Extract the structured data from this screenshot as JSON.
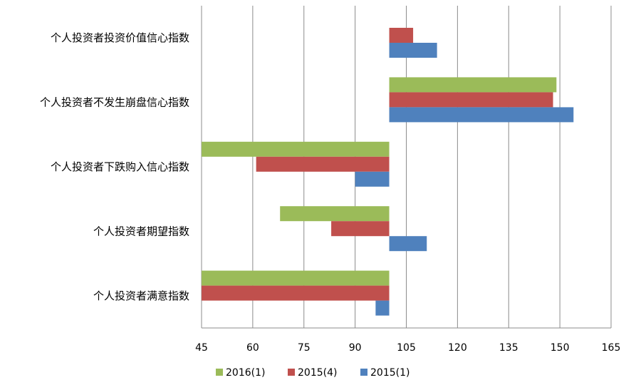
{
  "chart_data": {
    "type": "bar",
    "orientation": "horizontal",
    "title": "",
    "xlabel": "",
    "ylabel": "",
    "baseline": 100,
    "xlim": [
      45,
      165
    ],
    "xticks": [
      45,
      60,
      75,
      90,
      105,
      120,
      135,
      150,
      165
    ],
    "grid": "vertical",
    "legend_position": "bottom",
    "categories": [
      "个人投资者投资价值信心指数",
      "个人投资者不发生崩盘信心指数",
      "个人投资者下跌购入信心指数",
      "个人投资者期望指数",
      "个人投资者满意指数"
    ],
    "series": [
      {
        "name": "2016(1)",
        "color": "#9BBB59",
        "values": [
          100.0,
          149.0,
          45.0,
          68.0,
          45.0
        ]
      },
      {
        "name": "2015(4)",
        "color": "#C0504D",
        "values": [
          107.0,
          148.0,
          61.0,
          83.0,
          45.0
        ]
      },
      {
        "name": "2015(1)",
        "color": "#4F81BD",
        "values": [
          114.0,
          154.0,
          90.0,
          111.0,
          96.0
        ]
      }
    ]
  }
}
